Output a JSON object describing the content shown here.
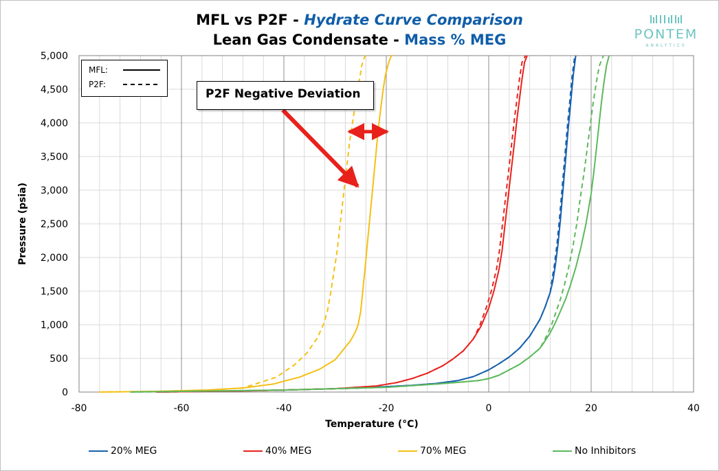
{
  "chart_data": {
    "type": "line",
    "title_parts": [
      "MFL vs P2F - ",
      "Hydrate Curve Comparison"
    ],
    "subtitle_parts": [
      "Lean Gas Condensate - ",
      "Mass % MEG"
    ],
    "xlabel": "Temperature (°C)",
    "ylabel": "Pressure (psia)",
    "xlim": [
      -80,
      40
    ],
    "ylim": [
      0,
      5000
    ],
    "x_major_ticks": [
      -80,
      -60,
      -40,
      -20,
      0,
      20,
      40
    ],
    "x_tick_labels": [
      "-80",
      "-60",
      "-40",
      "-20",
      "0",
      "20",
      "40"
    ],
    "x_minor_step": 4,
    "y_ticks": [
      0,
      500,
      1000,
      1500,
      2000,
      2500,
      3000,
      3500,
      4000,
      4500,
      5000
    ],
    "y_tick_labels": [
      "0",
      "500",
      "1,000",
      "1,500",
      "2,000",
      "2,500",
      "3,000",
      "3,500",
      "4,000",
      "4,500",
      "5,000"
    ],
    "grid": true,
    "line_styles": {
      "MFL": "solid",
      "P2F": "dashed"
    },
    "style_legend": [
      {
        "label": "MFL:",
        "style": "solid"
      },
      {
        "label": "P2F:",
        "style": "dashed"
      }
    ],
    "annotation": {
      "text": "P2F Negative Deviation",
      "arrow_from": [
        -40.2,
        4190
      ],
      "arrow_to": [
        -25.6,
        3060
      ],
      "deviation_range": [
        -27.3,
        -19.8
      ],
      "deviation_pressure": 3870
    },
    "series": [
      {
        "name": "20% MEG",
        "color": "#1560ad",
        "mfl": {
          "x": [
            -65,
            -40,
            -25,
            -15,
            -10,
            -6,
            -3,
            0,
            2,
            4,
            6,
            8,
            10,
            11,
            12,
            12.5,
            13,
            13.5,
            14,
            14.5,
            15,
            15.5,
            16,
            16.5,
            17
          ],
          "y": [
            0,
            30,
            60,
            100,
            130,
            170,
            230,
            330,
            420,
            520,
            650,
            830,
            1080,
            1260,
            1480,
            1640,
            1880,
            2180,
            2560,
            3000,
            3450,
            3900,
            4300,
            4700,
            5000
          ]
        },
        "p2f": {
          "x": [
            -65,
            -40,
            -25,
            -15,
            -10,
            -6,
            -3,
            0,
            2,
            4,
            6,
            8,
            10,
            11,
            12,
            12.3,
            12.8,
            13.3,
            13.8,
            14.3,
            14.8,
            15.3,
            15.8,
            16.3,
            16.8
          ],
          "y": [
            0,
            30,
            60,
            100,
            130,
            170,
            230,
            330,
            420,
            520,
            650,
            830,
            1080,
            1260,
            1480,
            1640,
            1880,
            2180,
            2560,
            3000,
            3450,
            3900,
            4300,
            4700,
            5000
          ]
        }
      },
      {
        "name": "40% MEG",
        "color": "#e8211b",
        "mfl": {
          "x": [
            -65,
            -45,
            -30,
            -22,
            -18,
            -15,
            -12,
            -9,
            -7,
            -5,
            -3,
            -1.5,
            0,
            1,
            2,
            2.6,
            3.2,
            3.8,
            4.4,
            5,
            5.5,
            6,
            6.5,
            7,
            7.5
          ],
          "y": [
            0,
            20,
            50,
            90,
            140,
            200,
            280,
            390,
            490,
            610,
            790,
            980,
            1250,
            1500,
            1820,
            2100,
            2500,
            2900,
            3300,
            3700,
            4050,
            4350,
            4650,
            4900,
            5000
          ]
        },
        "p2f": {
          "x": [
            -65,
            -45,
            -30,
            -22,
            -18,
            -15,
            -12,
            -9,
            -7,
            -5,
            -3,
            -1.8,
            -0.5,
            0.5,
            1.5,
            2.1,
            2.7,
            3.3,
            3.9,
            4.5,
            5,
            5.5,
            6,
            6.5,
            7.2
          ],
          "y": [
            0,
            20,
            50,
            90,
            140,
            200,
            280,
            390,
            490,
            610,
            790,
            980,
            1250,
            1500,
            1820,
            2100,
            2500,
            2900,
            3300,
            3700,
            4050,
            4350,
            4650,
            4900,
            5000
          ]
        }
      },
      {
        "name": "70% MEG",
        "color": "#f5bf14",
        "mfl": {
          "x": [
            -76,
            -65,
            -55,
            -48,
            -42,
            -37,
            -33,
            -30,
            -28.5,
            -27,
            -26,
            -25.5,
            -25,
            -24.6,
            -24.2,
            -23.7,
            -23.2,
            -22.7,
            -22.2,
            -21.7,
            -21.2,
            -20.7,
            -20.2,
            -19.7,
            -19.3,
            -19,
            -18.8
          ],
          "y": [
            0,
            10,
            30,
            60,
            120,
            220,
            340,
            480,
            620,
            760,
            900,
            1000,
            1200,
            1500,
            1800,
            2200,
            2600,
            3000,
            3400,
            3800,
            4150,
            4450,
            4700,
            4850,
            4950,
            5000,
            5000
          ]
        },
        "p2f": {
          "x": [
            -76,
            -65,
            -55,
            -48,
            -41.5,
            -38,
            -35.5,
            -33.5,
            -32.3,
            -31.5,
            -30.8,
            -30.2,
            -29.6,
            -29,
            -28.4,
            -27.8,
            -27.2,
            -26.6,
            -26,
            -25.5,
            -25.1,
            -24.8,
            -24.5,
            -24.1
          ],
          "y": [
            0,
            10,
            30,
            60,
            220,
            400,
            580,
            800,
            1000,
            1200,
            1500,
            1800,
            2100,
            2500,
            2900,
            3300,
            3700,
            4000,
            4300,
            4550,
            4700,
            4850,
            4930,
            5000
          ]
        }
      },
      {
        "name": "No Inhibitors",
        "color": "#5cb85c",
        "mfl": {
          "x": [
            -70,
            -40,
            -20,
            -10,
            -5,
            -2,
            0,
            2,
            4,
            6,
            8,
            10,
            11,
            12,
            13,
            14,
            15,
            16,
            17,
            18,
            19,
            20,
            20.5,
            21,
            21.5,
            22,
            22.5,
            23,
            23.5
          ],
          "y": [
            0,
            30,
            70,
            120,
            150,
            170,
            200,
            250,
            330,
            410,
            520,
            650,
            760,
            880,
            1030,
            1200,
            1380,
            1600,
            1850,
            2150,
            2500,
            2950,
            3250,
            3600,
            3950,
            4300,
            4600,
            4850,
            5000
          ]
        },
        "p2f": {
          "x": [
            -70,
            -40,
            -20,
            -10,
            -5,
            -2,
            0,
            2,
            4,
            6,
            8,
            10,
            10.8,
            11.6,
            12.4,
            13.2,
            14,
            14.8,
            15.6,
            16.4,
            17.2,
            18,
            18.6,
            19.2,
            19.8,
            20.4,
            21,
            21.6,
            22.4
          ],
          "y": [
            0,
            30,
            70,
            120,
            150,
            170,
            200,
            250,
            330,
            410,
            520,
            650,
            760,
            880,
            1030,
            1200,
            1380,
            1600,
            1850,
            2150,
            2500,
            2950,
            3250,
            3600,
            3950,
            4300,
            4600,
            4850,
            5000
          ]
        }
      }
    ]
  },
  "logo": {
    "word": "PONTEM",
    "sub": "ANALYTICS"
  }
}
